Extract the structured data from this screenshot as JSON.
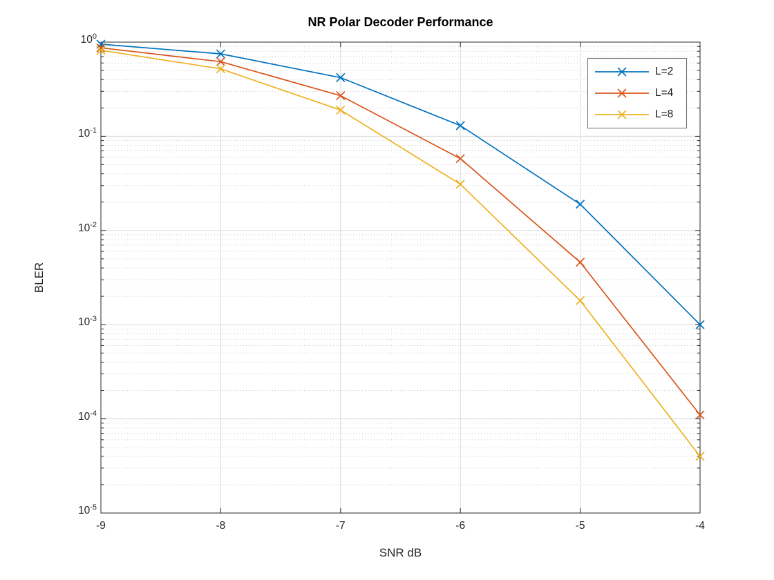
{
  "chart_data": {
    "type": "line",
    "title": "NR Polar Decoder Performance",
    "xlabel": "SNR dB",
    "ylabel": "BLER",
    "yscale": "log",
    "grid": {
      "major": true,
      "minor": true
    },
    "xlim": [
      -9,
      -4
    ],
    "ylim": [
      1e-05,
      1
    ],
    "x": [
      -9,
      -8,
      -7,
      -6,
      -5,
      -4
    ],
    "x_tick_labels": [
      "-9",
      "-8",
      "-7",
      "-6",
      "-5",
      "-4"
    ],
    "y_tick_exponents": [
      0,
      -1,
      -2,
      -3,
      -4,
      -5
    ],
    "series": [
      {
        "name": "L=2",
        "color": "#0072BD",
        "marker": "x",
        "values": [
          0.95,
          0.75,
          0.42,
          0.13,
          0.019,
          0.001
        ]
      },
      {
        "name": "L=4",
        "color": "#D95319",
        "marker": "x",
        "values": [
          0.87,
          0.62,
          0.27,
          0.058,
          0.0046,
          0.00011
        ]
      },
      {
        "name": "L=8",
        "color": "#EDB120",
        "marker": "x",
        "values": [
          0.82,
          0.52,
          0.19,
          0.031,
          0.0018,
          4e-05
        ]
      }
    ],
    "legend": {
      "position": "northeast",
      "entries": [
        "L=2",
        "L=4",
        "L=8"
      ]
    }
  },
  "style_colors": {
    "background": "#ffffff",
    "axis": "#262626",
    "tick_text": "#262626",
    "grid_major": "#d9d9d9",
    "grid_minor": "#c2c2c2",
    "legend_border": "#696969",
    "legend_background": "#ffffff"
  }
}
